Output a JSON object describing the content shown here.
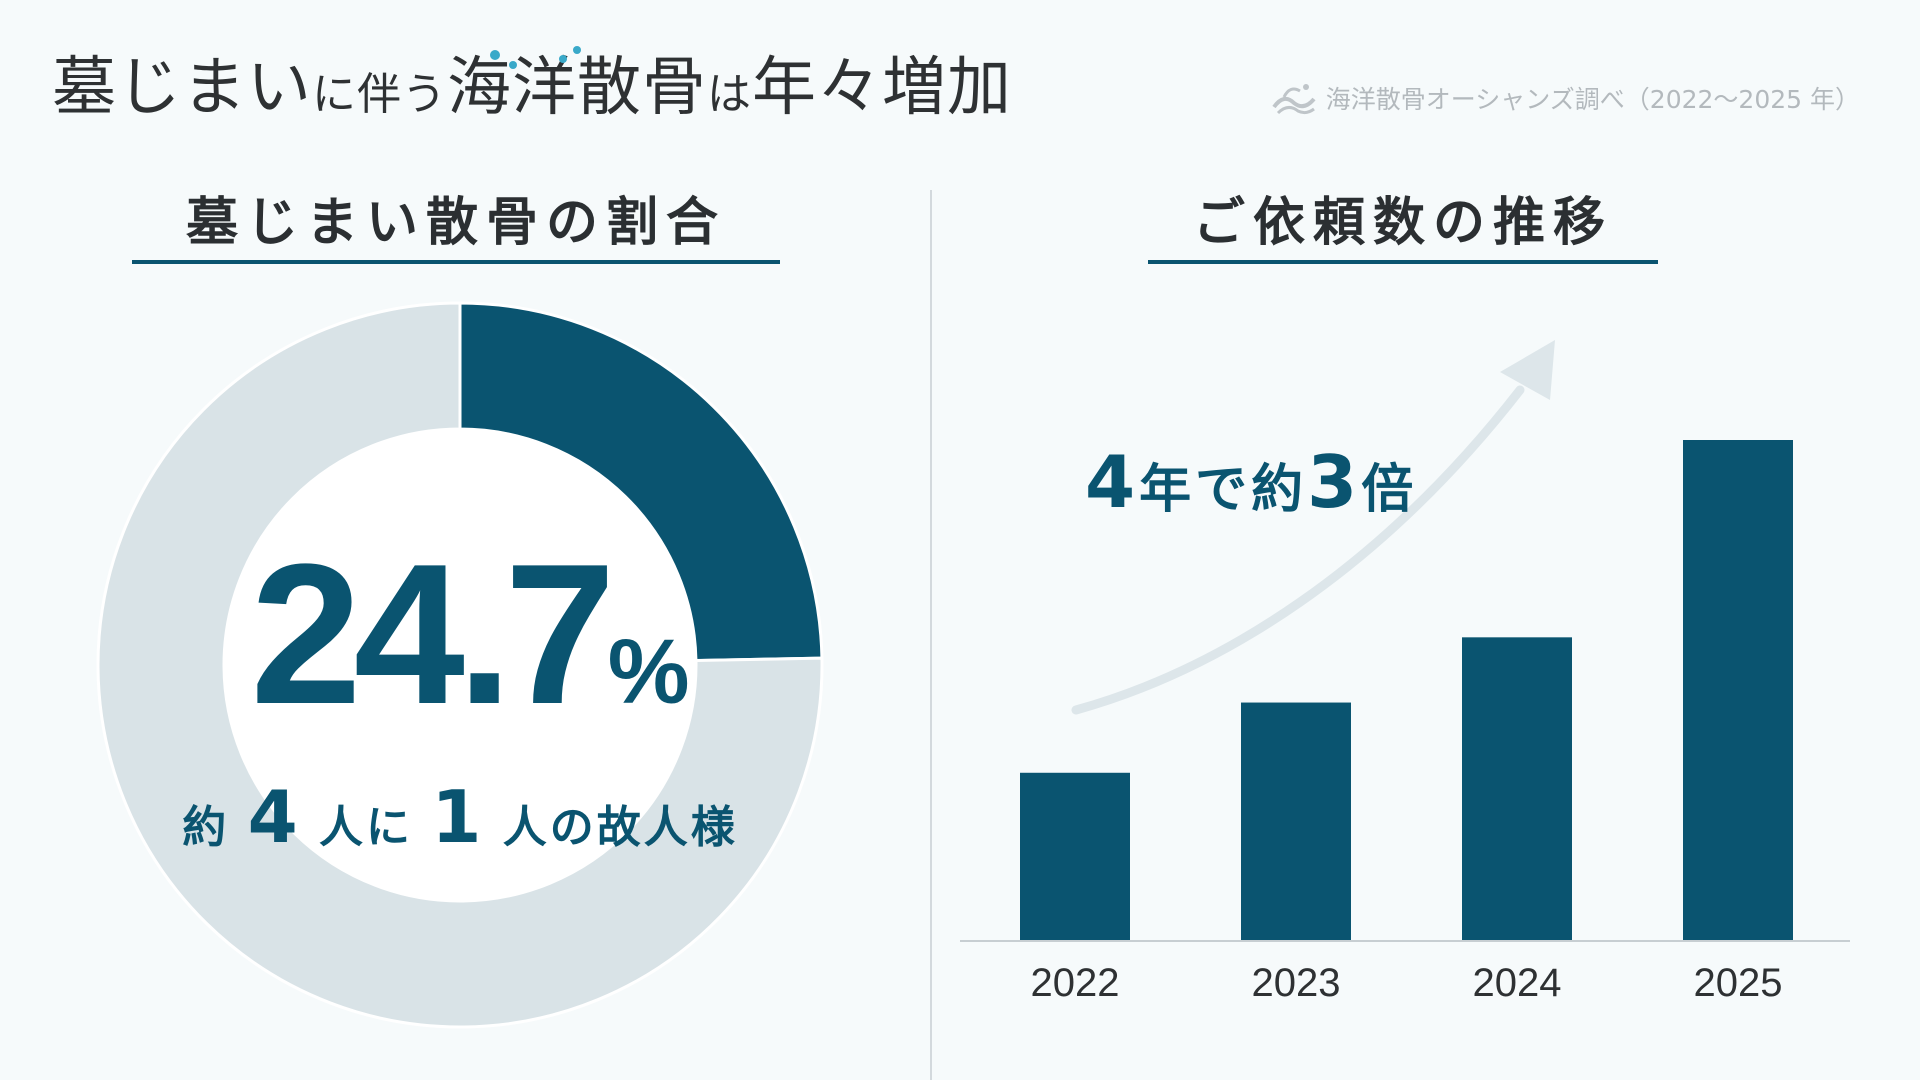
{
  "header": {
    "title_part1": "墓じまい",
    "title_part2": "に伴う",
    "title_part3": "海洋散骨",
    "title_part4": "は",
    "title_part5": "年々増加",
    "source": "海洋散骨オーシャンズ調べ（2022〜2025 年）"
  },
  "left_panel": {
    "title": "墓じまい散骨の割合",
    "percent_value": "24.7",
    "percent_unit": "%",
    "sub_prefix": "約",
    "sub_num1": "4",
    "sub_mid": "人に",
    "sub_num2": "1",
    "sub_suffix": "人の故人様"
  },
  "right_panel": {
    "title": "ご依頼数の推移",
    "growth_num1": "4",
    "growth_text1": "年で約",
    "growth_num2": "3",
    "growth_text2": "倍"
  },
  "colors": {
    "accent": "#0a5470",
    "ring_bg": "#d9e3e7",
    "arrow": "#dde6ea",
    "background": "#f6fafb"
  },
  "chart_data": [
    {
      "type": "pie",
      "style": "donut",
      "slices": [
        {
          "label": "墓じまい散骨",
          "value": 24.7
        },
        {
          "label": "",
          "value": 75.3
        }
      ]
    },
    {
      "type": "bar",
      "categories": [
        "2022",
        "2023",
        "2024",
        "2025"
      ],
      "values": [
        1.0,
        1.42,
        1.81,
        2.99
      ],
      "ylabel": "",
      "xlabel": ""
    }
  ]
}
